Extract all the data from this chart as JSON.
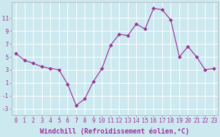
{
  "x": [
    0,
    1,
    2,
    3,
    4,
    5,
    6,
    7,
    8,
    9,
    10,
    11,
    12,
    13,
    14,
    15,
    16,
    17,
    18,
    19,
    20,
    21,
    22,
    23
  ],
  "y": [
    5.5,
    4.5,
    4.0,
    3.5,
    3.2,
    3.0,
    0.8,
    -2.5,
    -1.5,
    1.2,
    3.2,
    6.8,
    8.5,
    8.3,
    10.1,
    9.3,
    12.5,
    12.3,
    10.7,
    5.0,
    6.6,
    5.0,
    3.0,
    3.2
  ],
  "xlim": [
    -0.5,
    23.5
  ],
  "ylim": [
    -4.0,
    13.5
  ],
  "xticks": [
    0,
    1,
    2,
    3,
    4,
    5,
    6,
    7,
    8,
    9,
    10,
    11,
    12,
    13,
    14,
    15,
    16,
    17,
    18,
    19,
    20,
    21,
    22,
    23
  ],
  "yticks": [
    -3,
    -1,
    1,
    3,
    5,
    7,
    9,
    11
  ],
  "xlabel": "Windchill (Refroidissement éolien,°C)",
  "line_color": "#993399",
  "marker": "D",
  "marker_size": 2.5,
  "bg_color": "#cde9f0",
  "grid_color": "#ffffff",
  "tick_label_fontsize": 6,
  "xlabel_fontsize": 7,
  "spine_color": "#aaaaaa"
}
